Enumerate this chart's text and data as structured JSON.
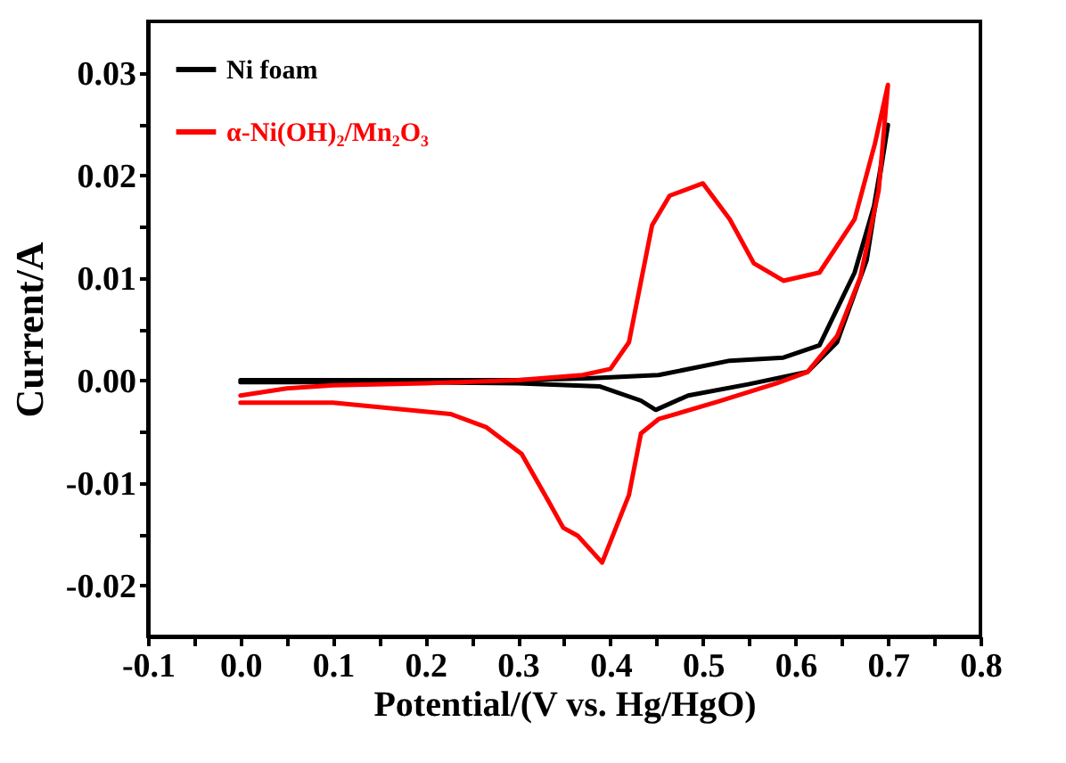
{
  "chart_data": {
    "type": "line",
    "xlabel": "Potential/(V vs. Hg/HgO)",
    "ylabel": "Current/A",
    "xlim": [
      -0.1,
      0.8
    ],
    "ylim": [
      -0.025,
      0.035
    ],
    "xticks": [
      {
        "value": -0.1,
        "label": "-0.1"
      },
      {
        "value": -0.05,
        "label": null
      },
      {
        "value": 0,
        "label": "0.0"
      },
      {
        "value": 0.05,
        "label": null
      },
      {
        "value": 0.1,
        "label": "0.1"
      },
      {
        "value": 0.15,
        "label": null
      },
      {
        "value": 0.2,
        "label": "0.2"
      },
      {
        "value": 0.25,
        "label": null
      },
      {
        "value": 0.3,
        "label": "0.3"
      },
      {
        "value": 0.35,
        "label": null
      },
      {
        "value": 0.4,
        "label": "0.4"
      },
      {
        "value": 0.45,
        "label": null
      },
      {
        "value": 0.5,
        "label": "0.5"
      },
      {
        "value": 0.55,
        "label": null
      },
      {
        "value": 0.6,
        "label": "0.6"
      },
      {
        "value": 0.65,
        "label": null
      },
      {
        "value": 0.7,
        "label": "0.7"
      },
      {
        "value": 0.75,
        "label": null
      },
      {
        "value": 0.8,
        "label": "0.8"
      }
    ],
    "yticks": [
      {
        "value": -0.02,
        "label": "-0.02"
      },
      {
        "value": -0.015,
        "label": null
      },
      {
        "value": -0.01,
        "label": "-0.01"
      },
      {
        "value": -0.005,
        "label": null
      },
      {
        "value": 0,
        "label": "0.00"
      },
      {
        "value": 0.005,
        "label": null
      },
      {
        "value": 0.01,
        "label": "0.01"
      },
      {
        "value": 0.015,
        "label": null
      },
      {
        "value": 0.02,
        "label": "0.02"
      },
      {
        "value": 0.025,
        "label": null
      },
      {
        "value": 0.03,
        "label": "0.03"
      }
    ],
    "grid": false,
    "legend": "top left",
    "marker": "none",
    "line_style": "solid",
    "series": [
      {
        "name": "Ni foam",
        "color": "#000000",
        "x": [
          0,
          0.1,
          0.2,
          0.3,
          0.38,
          0.452,
          0.529,
          0.587,
          0.626,
          0.664,
          0.685,
          0.7,
          0.677,
          0.645,
          0.613,
          0.549,
          0.484,
          0.449,
          0.433,
          0.388,
          0.3,
          0.2,
          0.1,
          0
        ],
        "values": [
          0,
          0,
          0,
          0,
          0.0002,
          0.0005,
          0.0019,
          0.0022,
          0.0034,
          0.0105,
          0.017,
          0.0249,
          0.0117,
          0.0037,
          0.0008,
          -0.0004,
          -0.0015,
          -0.0029,
          -0.002,
          -0.0006,
          -0.0003,
          -0.0002,
          -0.0002,
          -0.0002
        ]
      },
      {
        "name": "α-Ni(OH)₂/Mn₂O₃",
        "color": "#ff0000",
        "x": [
          0,
          0.05,
          0.1,
          0.2,
          0.3,
          0.37,
          0.4,
          0.42,
          0.445,
          0.464,
          0.5,
          0.529,
          0.555,
          0.587,
          0.626,
          0.664,
          0.686,
          0.7,
          0.69,
          0.67,
          0.645,
          0.613,
          0.58,
          0.516,
          0.452,
          0.433,
          0.42,
          0.391,
          0.365,
          0.349,
          0.333,
          0.304,
          0.266,
          0.227,
          0.1,
          0
        ],
        "values": [
          -0.0015,
          -0.0008,
          -0.0005,
          -0.0003,
          0,
          0.0005,
          0.0011,
          0.0037,
          0.0151,
          0.018,
          0.0192,
          0.0157,
          0.0114,
          0.0097,
          0.0105,
          0.0157,
          0.0231,
          0.0288,
          0.0185,
          0.01,
          0.0043,
          0.0008,
          -0.0003,
          -0.0021,
          -0.0038,
          -0.0052,
          -0.0112,
          -0.0178,
          -0.0152,
          -0.0144,
          -0.0118,
          -0.0072,
          -0.0046,
          -0.0033,
          -0.0022,
          -0.0022
        ]
      }
    ]
  }
}
